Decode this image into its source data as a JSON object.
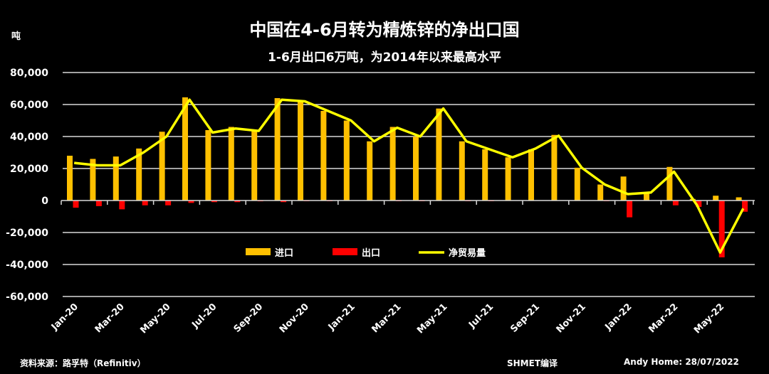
{
  "chart_data": {
    "type": "bar",
    "title": "中国在4-6月转为精炼锌的净出口国",
    "subtitle": "1-6月出口6万吨，为2014年以来最高水平",
    "ylabel": "吨",
    "ylim": [
      -60000,
      80000
    ],
    "yticks": [
      "80,000",
      "60,000",
      "40,000",
      "20,000",
      "0",
      "-20,000",
      "-40,000",
      "-60,000"
    ],
    "ytick_values": [
      80000,
      60000,
      40000,
      20000,
      0,
      -20000,
      -40000,
      -60000
    ],
    "grid": true,
    "legend_placement": "bottom-center",
    "categories": [
      "Jan-20",
      "Feb-20",
      "Mar-20",
      "Apr-20",
      "May-20",
      "Jun-20",
      "Jul-20",
      "Aug-20",
      "Sep-20",
      "Oct-20",
      "Nov-20",
      "Dec-20",
      "Jan-21",
      "Feb-21",
      "Mar-21",
      "Apr-21",
      "May-21",
      "Jun-21",
      "Jul-21",
      "Aug-21",
      "Sep-21",
      "Oct-21",
      "Nov-21",
      "Dec-21",
      "Jan-22",
      "Feb-22",
      "Mar-22",
      "Apr-22",
      "May-22",
      "Jun-22"
    ],
    "xtick_labels": [
      "Jan-20",
      "Mar-20",
      "May-20",
      "Jul-20",
      "Sep-20",
      "Nov-20",
      "Jan-21",
      "Mar-21",
      "May-21",
      "Jul-21",
      "Sep-21",
      "Nov-21",
      "Jan-22",
      "Mar-22",
      "May-22"
    ],
    "series": [
      {
        "name": "进口",
        "type": "bar",
        "color": "#FFC000",
        "values": [
          28000,
          26000,
          27500,
          32500,
          43000,
          64500,
          44000,
          46000,
          44000,
          64000,
          62000,
          56000,
          50000,
          37000,
          46000,
          40000,
          57500,
          37000,
          32000,
          27000,
          32000,
          41000,
          20500,
          10000,
          15000,
          5000,
          21000,
          1000,
          3000,
          2000
        ]
      },
      {
        "name": "出口",
        "type": "bar",
        "color": "#FF0000",
        "values": [
          -4500,
          -3500,
          -5500,
          -3000,
          -3000,
          -1500,
          -1000,
          -1000,
          -500,
          -1000,
          -300,
          -300,
          0,
          0,
          -300,
          -200,
          0,
          -300,
          -300,
          0,
          0,
          0,
          0,
          -200,
          -10500,
          0,
          -3000,
          -4000,
          -35500,
          -7000
        ]
      },
      {
        "name": "净贸易量",
        "type": "line",
        "color": "#FFFF00",
        "values": [
          23500,
          22000,
          22000,
          30000,
          40000,
          63000,
          42500,
          45000,
          43500,
          63000,
          62000,
          56000,
          50000,
          37000,
          45500,
          40000,
          57500,
          37000,
          32000,
          27000,
          32500,
          40500,
          20500,
          10000,
          4000,
          5000,
          18000,
          -3000,
          -32500,
          -5000
        ]
      }
    ]
  },
  "footer": {
    "source": "资料来源：路孚特（Refinitiv）",
    "translator": "SHMET编译",
    "author_date": "Andy Home: 28/07/2022"
  }
}
